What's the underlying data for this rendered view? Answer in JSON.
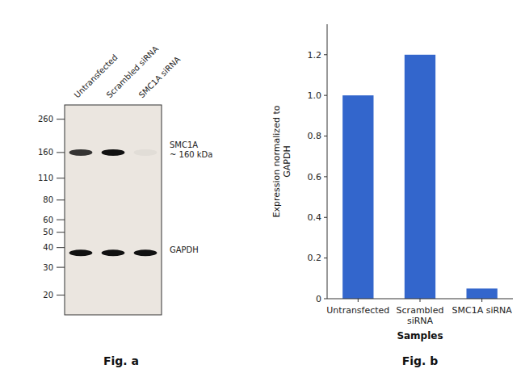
{
  "chart_data": [
    {
      "type": "blot",
      "title": "Fig. a",
      "categories": [
        "Untransfected",
        "Scrambled siRNA",
        "SMC1A siRNA"
      ],
      "log": "y",
      "ylim": [
        15,
        320
      ],
      "yticks": [
        260,
        160,
        110,
        80,
        60,
        50,
        40,
        30,
        20
      ],
      "annotations": [
        {
          "text": "SMC1A\n~ 160 kDa",
          "y": 160
        },
        {
          "text": "GAPDH",
          "y": 37
        }
      ]
    },
    {
      "type": "bar",
      "title": "Fig. b",
      "categories": [
        "Untransfected",
        "Scrambled\nsiRNA",
        "SMC1A siRNA"
      ],
      "values": [
        1.0,
        1.2,
        0.05
      ],
      "color": "#3366cc",
      "xlabel": "Samples",
      "ylabel": "Expression normalized to\nGAPDH",
      "ylim": [
        0,
        1.35
      ],
      "yticks": [
        0,
        0.2,
        0.4,
        0.6,
        0.8,
        {
          "value": 1.0,
          "label": "1.0"
        },
        1.2
      ],
      "grid": false
    }
  ]
}
